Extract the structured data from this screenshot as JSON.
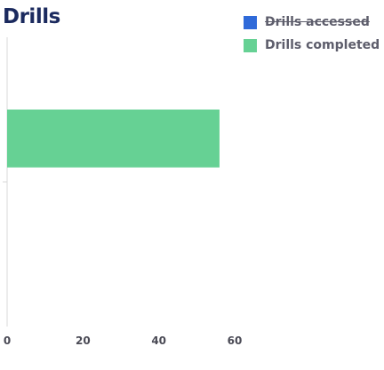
{
  "chart_data": {
    "type": "bar",
    "orientation": "horizontal",
    "title": "Drills",
    "categories": [
      "",
      ""
    ],
    "series": [
      {
        "name": "Drills accessed",
        "color": "#2f6ad9",
        "hidden": true,
        "values": [
          0,
          0
        ]
      },
      {
        "name": "Drills completed",
        "color": "#66d194",
        "hidden": false,
        "values": [
          56,
          0
        ]
      }
    ],
    "xlim": [
      0,
      60
    ],
    "xticks": [
      "0",
      "20",
      "40",
      "60"
    ],
    "legend_position": "top-right",
    "grid": false
  }
}
